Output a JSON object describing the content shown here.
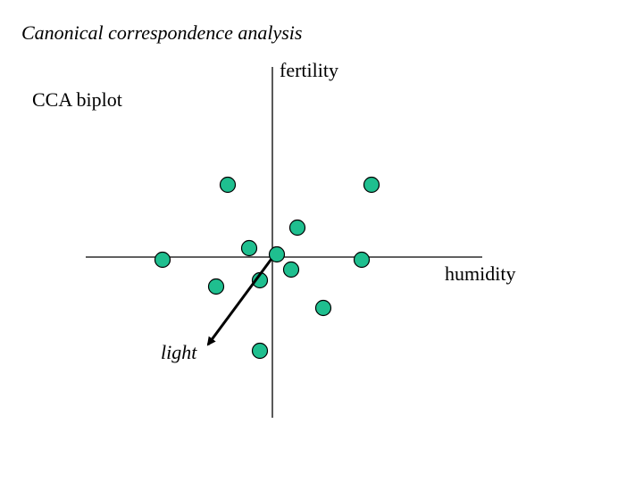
{
  "title": "Canonical correspondence analysis",
  "subtitle": "CCA biplot",
  "axes": {
    "vertical_label": "fertility",
    "horizontal_label": "humidity"
  },
  "arrow": {
    "label": "light"
  },
  "colors": {
    "point_fill": "#1fbf8f",
    "point_stroke": "#000000",
    "axis": "#000000",
    "arrow": "#000000"
  },
  "points_count": 12
}
